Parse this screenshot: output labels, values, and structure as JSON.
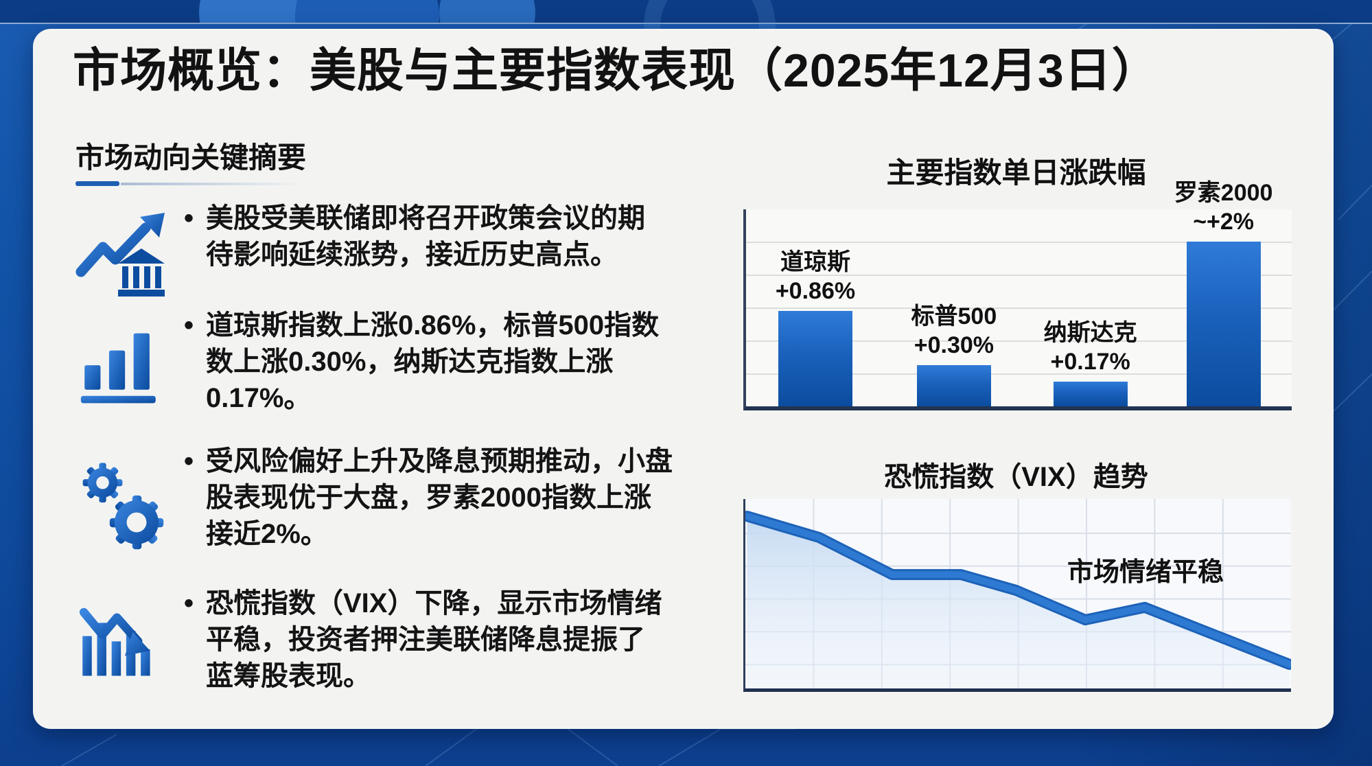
{
  "page": {
    "title": "市场概览：美股与主要指数表现（2025年12月3日）"
  },
  "summary": {
    "heading": "市场动向关键摘要",
    "bullet_glyph": "•",
    "bullets": [
      {
        "icon": "trend-up-bank-icon",
        "lines": [
          "美股受美联储即将召开政策会议的期",
          "待影响延续涨势，接近历史高点。"
        ]
      },
      {
        "icon": "bar-chart-icon",
        "lines": [
          "道琼斯指数上涨0.86%，标普500指数",
          "数上涨0.30%，纳斯达克指数上涨",
          "0.17%。"
        ]
      },
      {
        "icon": "gears-icon",
        "lines": [
          "受风险偏好上升及降息预期推动，小盘",
          "股表现优于大盘，罗素2000指数上涨",
          "接近2%。"
        ]
      },
      {
        "icon": "declining-chart-icon",
        "lines": [
          "恐慌指数（VIX）下降，显示市场情绪",
          "平稳，投资者押注美联储降息提振了",
          "蓝筹股表现。"
        ]
      }
    ]
  },
  "chart_data": [
    {
      "type": "bar",
      "title": "主要指数单日涨跌幅",
      "categories": [
        "道琼斯",
        "标普500",
        "纳斯达克",
        "罗素2000"
      ],
      "value_labels": [
        "+0.86%",
        "+0.30%",
        "+0.17%",
        "~+2%"
      ],
      "values": [
        0.86,
        0.3,
        0.17,
        2.0
      ],
      "ylim": [
        0,
        2.4
      ],
      "grid": "horizontal",
      "legend": "none",
      "layout": {
        "height_fracs": [
          0.485,
          0.21,
          0.125,
          0.835
        ],
        "center_fracs": [
          0.127,
          0.381,
          0.631,
          0.875
        ]
      }
    },
    {
      "type": "line",
      "title": "恐慌指数（VIX）趋势",
      "annotation": "市场情绪平稳",
      "grid": "both",
      "legend": "none",
      "points_frac": [
        [
          0.003,
          0.091
        ],
        [
          0.135,
          0.203
        ],
        [
          0.269,
          0.399
        ],
        [
          0.395,
          0.399
        ],
        [
          0.496,
          0.482
        ],
        [
          0.623,
          0.638
        ],
        [
          0.732,
          0.572
        ],
        [
          0.997,
          0.873
        ]
      ]
    }
  ],
  "colors": {
    "accent_blue": "#1f5fb3",
    "bar_top": "#2f7bd7",
    "bar_bottom": "#0b4c9e",
    "line_blue": "#2471cd",
    "card_bg": "#f3f4f2",
    "page_bg": "#1254a8"
  }
}
